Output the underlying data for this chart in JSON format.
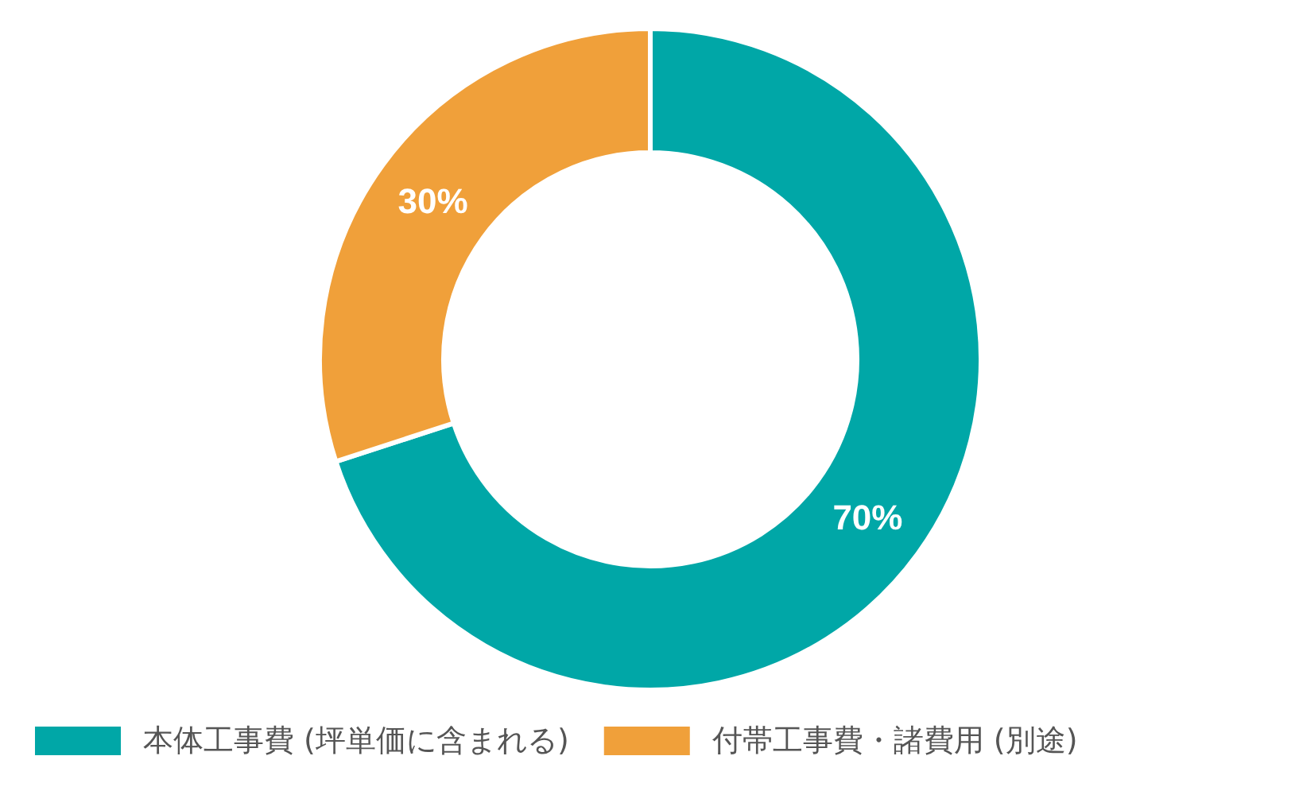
{
  "chart_data": {
    "type": "donut",
    "categories": [
      "本体工事費 (坪単価に含まれる)",
      "付帯工事費・諸費用 (別途)"
    ],
    "values": [
      70,
      30
    ],
    "colors": [
      "#00a7a7",
      "#f0a03a"
    ],
    "value_labels": [
      "70%",
      "30%"
    ],
    "legend": "bottom"
  }
}
